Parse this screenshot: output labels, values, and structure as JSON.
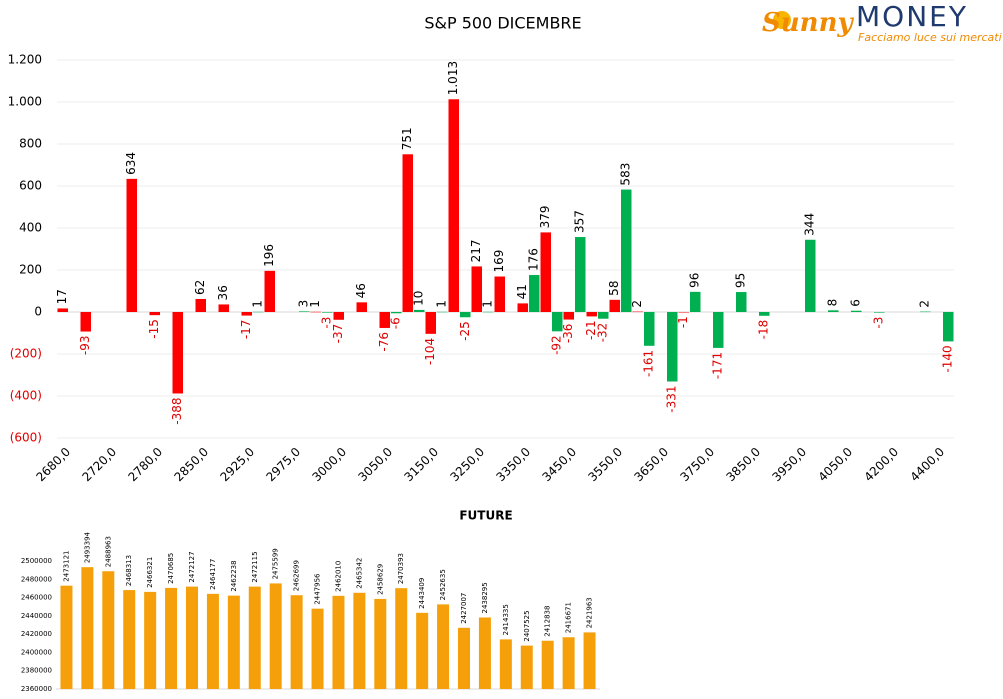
{
  "logo": {
    "brand": "Sunny",
    "name": "MONEY",
    "slogan": "Facciamo luce sui mercati"
  },
  "chart_data": [
    {
      "type": "bar",
      "title": "S&P 500 DICEMBRE",
      "categories": [
        "2680,0",
        null,
        "2720,0",
        null,
        "2780,0",
        null,
        "2850,0",
        null,
        "2925,0",
        null,
        "2975,0",
        null,
        "3000,0",
        null,
        "3050,0",
        null,
        "3150,0",
        null,
        "3250,0",
        null,
        "3350,0",
        null,
        "3450,0",
        null,
        "3550,0",
        null,
        "3650,0",
        null,
        "3750,0",
        null,
        "3850,0",
        null,
        "3950,0",
        null,
        "4050,0",
        null,
        "4200,0",
        null,
        "4400,0"
      ],
      "series": [
        {
          "color": "#ff0000",
          "values": [
            17,
            -93,
            null,
            634,
            -15,
            -388,
            62,
            36,
            -17,
            196,
            null,
            1,
            -37,
            46,
            -76,
            751,
            -104,
            1013,
            217,
            169,
            41,
            379,
            -36,
            -21,
            58,
            2,
            null,
            -1,
            null,
            null,
            null,
            null,
            null,
            null,
            null,
            null,
            null,
            null,
            null
          ],
          "value_labels": [
            "17",
            "-93",
            null,
            "634",
            "-15",
            "-388",
            "62",
            "36",
            "-17",
            "196",
            null,
            "1",
            "-37",
            "46",
            "-76",
            "751",
            "-104",
            "1.013",
            "217",
            "169",
            "41",
            "379",
            "-36",
            "-21",
            "58",
            "2",
            null,
            "-1",
            null,
            null,
            null,
            null,
            null,
            null,
            null,
            null,
            null,
            null,
            null
          ]
        },
        {
          "color": "#00b050",
          "values": [
            null,
            null,
            null,
            null,
            null,
            null,
            null,
            null,
            1,
            null,
            3,
            -3,
            null,
            null,
            -6,
            10,
            1,
            -25,
            1,
            null,
            176,
            -92,
            357,
            -32,
            583,
            -161,
            -331,
            96,
            -171,
            95,
            -18,
            null,
            344,
            8,
            6,
            -3,
            null,
            2,
            -140
          ]
        }
      ],
      "ylim": [
        -600,
        1200
      ],
      "yticks": [
        {
          "value": -600,
          "label": "(600)"
        },
        {
          "value": -400,
          "label": "(400)"
        },
        {
          "value": -200,
          "label": "(200)"
        },
        0,
        200,
        400,
        600,
        800,
        {
          "value": 1000,
          "label": "1.000"
        },
        {
          "value": 1200,
          "label": "1.200"
        }
      ],
      "grid": true
    },
    {
      "type": "bar",
      "title": "FUTURE",
      "color": "#f5a00a",
      "values": [
        2473121,
        2493394,
        2488963,
        2468313,
        2466321,
        2470685,
        2472127,
        2464177,
        2462238,
        2472115,
        2475599,
        2462699,
        2447956,
        2462010,
        2465342,
        2458629,
        2470393,
        2443409,
        2452635,
        2427007,
        2438295,
        2414335,
        2407525,
        2412838,
        2416671,
        2421963
      ],
      "ylim": [
        2360000,
        2510000
      ],
      "yticks": [
        2360000,
        2380000,
        2400000,
        2420000,
        2440000,
        2460000,
        2480000,
        2500000
      ],
      "grid": false
    }
  ]
}
